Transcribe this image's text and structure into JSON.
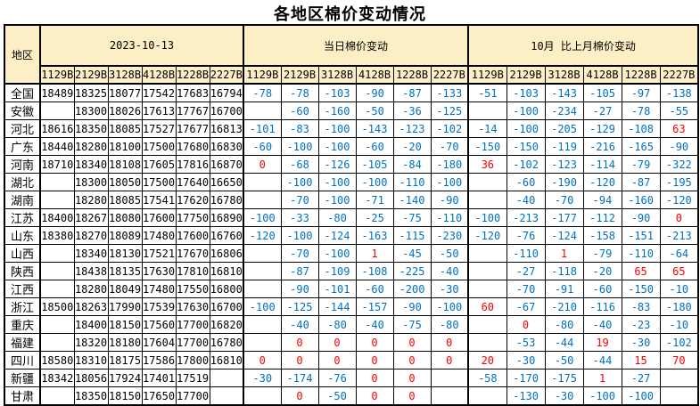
{
  "title": "各地区棉价变动情况",
  "colors": {
    "header_bg": "#FCEFC6",
    "negative": "#0070C0",
    "positive": "#FF0000",
    "border": "#000000"
  },
  "table": {
    "region_header": "地区",
    "groups": [
      {
        "label": "2023-10-13",
        "subcols": [
          "1129B",
          "2129B",
          "3128B",
          "4128B",
          "1228B",
          "2227B"
        ]
      },
      {
        "label": "当日棉价变动",
        "subcols": [
          "1129B",
          "2129B",
          "3128B",
          "4128B",
          "1228B",
          "2227B"
        ]
      },
      {
        "label": "10月 比上月棉价变动",
        "subcols": [
          "1129B",
          "2129B",
          "3128B",
          "4128B",
          "1228B",
          "2227B"
        ]
      }
    ],
    "rows": [
      {
        "region": "全国",
        "prices": [
          "18489",
          "18325",
          "18077",
          "17542",
          "17683",
          "16794"
        ],
        "daily": [
          "-78",
          "-78",
          "-103",
          "-90",
          "-87",
          "-133"
        ],
        "monthly": [
          "-51",
          "-103",
          "-143",
          "-105",
          "-97",
          "-138"
        ]
      },
      {
        "region": "安徽",
        "prices": [
          "",
          "18300",
          "18026",
          "17613",
          "17767",
          "16700"
        ],
        "daily": [
          "",
          "-60",
          "-160",
          "-50",
          "-36",
          "-125"
        ],
        "monthly": [
          "",
          "-100",
          "-234",
          "-27",
          "-78",
          "-55"
        ]
      },
      {
        "region": "河北",
        "prices": [
          "18616",
          "18350",
          "18085",
          "17527",
          "17677",
          "16813"
        ],
        "daily": [
          "-101",
          "-83",
          "-100",
          "-143",
          "-123",
          "-102"
        ],
        "monthly": [
          "-14",
          "-100",
          "-205",
          "-129",
          "-108",
          "63"
        ]
      },
      {
        "region": "广东",
        "prices": [
          "18440",
          "18280",
          "18100",
          "17500",
          "17680",
          "16830"
        ],
        "daily": [
          "-60",
          "-100",
          "-100",
          "-60",
          "-20",
          "-70"
        ],
        "monthly": [
          "-150",
          "-150",
          "-119",
          "-216",
          "-165",
          "-90"
        ]
      },
      {
        "region": "河南",
        "prices": [
          "18710",
          "18340",
          "18108",
          "17605",
          "17816",
          "16870"
        ],
        "daily": [
          "0",
          "-68",
          "-126",
          "-105",
          "-84",
          "-180"
        ],
        "monthly": [
          "36",
          "-102",
          "-123",
          "-114",
          "-79",
          "-322"
        ]
      },
      {
        "region": "湖北",
        "prices": [
          "",
          "18300",
          "18050",
          "17500",
          "17640",
          "16650"
        ],
        "daily": [
          "",
          "-100",
          "-100",
          "-100",
          "-110",
          "-100"
        ],
        "monthly": [
          "",
          "-60",
          "-190",
          "-120",
          "-87",
          "-195"
        ]
      },
      {
        "region": "湖南",
        "prices": [
          "",
          "18280",
          "18085",
          "17541",
          "17620",
          "16780"
        ],
        "daily": [
          "",
          "-70",
          "-100",
          "-71",
          "-140",
          "-90"
        ],
        "monthly": [
          "",
          "-40",
          "-70",
          "-94",
          "-160",
          "-120"
        ]
      },
      {
        "region": "江苏",
        "prices": [
          "18400",
          "18267",
          "18080",
          "17600",
          "17750",
          "16890"
        ],
        "daily": [
          "-100",
          "-33",
          "-80",
          "-25",
          "-75",
          "-110"
        ],
        "monthly": [
          "-100",
          "-213",
          "-177",
          "-112",
          "-90",
          "0"
        ]
      },
      {
        "region": "山东",
        "prices": [
          "18380",
          "18270",
          "18089",
          "17480",
          "17600",
          "16760"
        ],
        "daily": [
          "-120",
          "-100",
          "-124",
          "-163",
          "-115",
          "-230"
        ],
        "monthly": [
          "-120",
          "-76",
          "-124",
          "-158",
          "-151",
          "-213"
        ]
      },
      {
        "region": "山西",
        "prices": [
          "",
          "18340",
          "18130",
          "17521",
          "17670",
          "16806"
        ],
        "daily": [
          "",
          "-70",
          "-100",
          "1",
          "-45",
          "-50"
        ],
        "monthly": [
          "",
          "-110",
          "1",
          "-79",
          "-110",
          "-64"
        ]
      },
      {
        "region": "陕西",
        "prices": [
          "",
          "18438",
          "18135",
          "17630",
          "17810",
          "16810"
        ],
        "daily": [
          "",
          "-87",
          "-109",
          "-108",
          "-225",
          "-40"
        ],
        "monthly": [
          "",
          "-27",
          "-118",
          "-20",
          "65",
          "65"
        ]
      },
      {
        "region": "江西",
        "prices": [
          "",
          "18280",
          "18049",
          "17480",
          "17550",
          "16800"
        ],
        "daily": [
          "",
          "-90",
          "-101",
          "-60",
          "-200",
          "-30"
        ],
        "monthly": [
          "",
          "-70",
          "-91",
          "-60",
          "-150",
          "-10"
        ]
      },
      {
        "region": "浙江",
        "prices": [
          "18500",
          "18263",
          "17990",
          "17539",
          "17630",
          "16700"
        ],
        "daily": [
          "-100",
          "-125",
          "-144",
          "-157",
          "-90",
          "-100"
        ],
        "monthly": [
          "60",
          "-67",
          "-210",
          "-116",
          "-83",
          "-180"
        ]
      },
      {
        "region": "重庆",
        "prices": [
          "",
          "18400",
          "18150",
          "17560",
          "17700",
          "16820"
        ],
        "daily": [
          "",
          "-40",
          "-80",
          "-40",
          "-75",
          "-80"
        ],
        "monthly": [
          "",
          "0",
          "-80",
          "-40",
          "-23",
          "-10"
        ]
      },
      {
        "region": "福建",
        "prices": [
          "",
          "18320",
          "18180",
          "17604",
          "17700",
          "16780"
        ],
        "daily": [
          "",
          "0",
          "0",
          "0",
          "0",
          "0"
        ],
        "monthly": [
          "",
          "-53",
          "-44",
          "19",
          "-30",
          "-102"
        ]
      },
      {
        "region": "四川",
        "prices": [
          "18580",
          "18310",
          "18175",
          "17586",
          "17800",
          "16810"
        ],
        "daily": [
          "0",
          "0",
          "0",
          "0",
          "0",
          "0"
        ],
        "monthly": [
          "20",
          "-30",
          "-50",
          "-44",
          "15",
          "70"
        ]
      },
      {
        "region": "新疆",
        "prices": [
          "18342",
          "18056",
          "17924",
          "17401",
          "17519",
          ""
        ],
        "daily": [
          "-30",
          "-174",
          "-76",
          "0",
          "0",
          ""
        ],
        "monthly": [
          "-58",
          "-170",
          "-175",
          "1",
          "-27",
          ""
        ]
      },
      {
        "region": "甘肃",
        "prices": [
          "",
          "18350",
          "18150",
          "17650",
          "17700",
          ""
        ],
        "daily": [
          "",
          "0",
          "-50",
          "0",
          "0",
          ""
        ],
        "monthly": [
          "",
          "-130",
          "-30",
          "-100",
          "-100",
          ""
        ]
      }
    ]
  }
}
